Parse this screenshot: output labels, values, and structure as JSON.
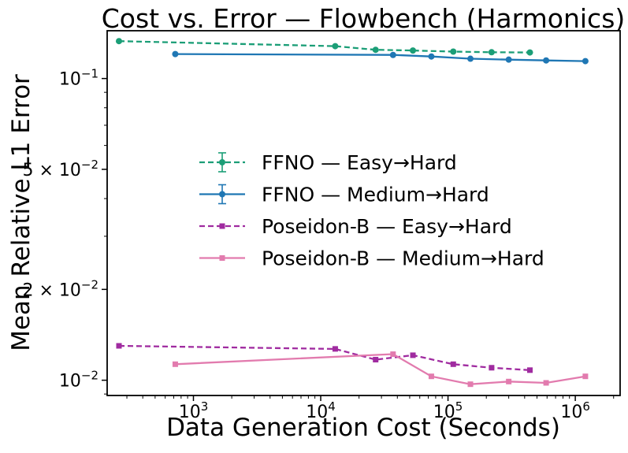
{
  "figure": {
    "background": "#ffffff",
    "frame_color": "#000000",
    "text_color": "#000000"
  },
  "chart_data": {
    "type": "line",
    "title": "Cost vs. Error — Flowbench (Harmonics)",
    "xlabel": "Data Generation Cost (Seconds)",
    "ylabel": "Mean Relative L1 Error",
    "xscale": "log",
    "yscale": "log",
    "grid": false,
    "legend_position": "center",
    "xlim": [
      210,
      2250000
    ],
    "ylim": [
      0.0089,
      0.144
    ],
    "x_ticks": [
      {
        "value": 1000,
        "label_base": "10",
        "label_exp": "3"
      },
      {
        "value": 10000,
        "label_base": "10",
        "label_exp": "4"
      },
      {
        "value": 100000,
        "label_base": "10",
        "label_exp": "5"
      },
      {
        "value": 1000000,
        "label_base": "10",
        "label_exp": "6"
      }
    ],
    "y_ticks": [
      {
        "value": 0.1,
        "label_prefix": "",
        "label_base": "10",
        "label_exp": "−1"
      },
      {
        "value": 0.05,
        "label_prefix": "5 × ",
        "label_base": "10",
        "label_exp": "−2"
      },
      {
        "value": 0.02,
        "label_prefix": "2 × ",
        "label_base": "10",
        "label_exp": "−2"
      },
      {
        "value": 0.01,
        "label_prefix": "",
        "label_base": "10",
        "label_exp": "−2"
      }
    ],
    "series": [
      {
        "name": "FFNO — Easy→Hard",
        "color": "#1b9e77",
        "linestyle": "dashed",
        "marker": "circle",
        "errorbars": true,
        "x": [
          260,
          13000,
          27000,
          53000,
          110000,
          220000,
          440000
        ],
        "y": [
          0.133,
          0.128,
          0.1245,
          0.1238,
          0.1228,
          0.1222,
          0.122
        ]
      },
      {
        "name": "FFNO — Medium→Hard",
        "color": "#1f77b4",
        "linestyle": "solid",
        "marker": "circle",
        "errorbars": true,
        "x": [
          720,
          37000,
          74000,
          150000,
          300000,
          590000,
          1200000
        ],
        "y": [
          0.1205,
          0.1197,
          0.1183,
          0.1163,
          0.1155,
          0.1148,
          0.1142
        ]
      },
      {
        "name": "Poseidon-B — Easy→Hard",
        "color": "#a02ba0",
        "linestyle": "dashed",
        "marker": "square",
        "errorbars": false,
        "x": [
          260,
          13000,
          27000,
          53000,
          110000,
          220000,
          440000
        ],
        "y": [
          0.013,
          0.0127,
          0.0117,
          0.0121,
          0.0113,
          0.011,
          0.0108
        ]
      },
      {
        "name": "Poseidon-B — Medium→Hard",
        "color": "#e27bae",
        "linestyle": "solid",
        "marker": "square",
        "errorbars": false,
        "x": [
          720,
          37000,
          74000,
          150000,
          300000,
          590000,
          1200000
        ],
        "y": [
          0.0113,
          0.0122,
          0.0103,
          0.0097,
          0.0099,
          0.0098,
          0.0103
        ]
      }
    ]
  }
}
